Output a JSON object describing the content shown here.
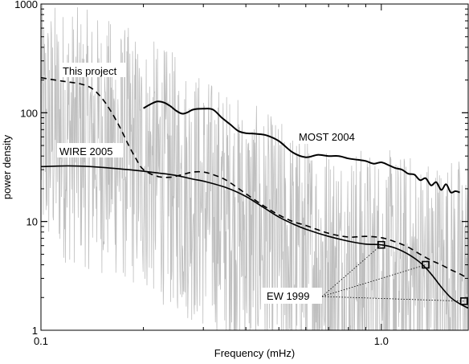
{
  "chart_data": {
    "type": "line",
    "xlabel": "Frequency (mHz)",
    "ylabel": "power density",
    "x_scale": "log",
    "y_scale": "log",
    "xlim": [
      0.1,
      1.8
    ],
    "ylim": [
      1,
      1000
    ],
    "x_ticks": [
      {
        "value": 0.1,
        "label": "0.1"
      },
      {
        "value": 1.0,
        "label": "1.0"
      }
    ],
    "y_ticks": [
      {
        "value": 1,
        "label": "1"
      },
      {
        "value": 10,
        "label": "10"
      },
      {
        "value": 100,
        "label": "100"
      },
      {
        "value": 1000,
        "label": "1000"
      }
    ],
    "grid": false,
    "noise_color": "#bfbfbf",
    "series": [
      {
        "name": "This project",
        "style": "dashed",
        "x": [
          0.1,
          0.11,
          0.12,
          0.13,
          0.14,
          0.15,
          0.16,
          0.17,
          0.18,
          0.19,
          0.2,
          0.22,
          0.24,
          0.26,
          0.28,
          0.3,
          0.32,
          0.35,
          0.4,
          0.45,
          0.5,
          0.55,
          0.6,
          0.7,
          0.8,
          0.9,
          1.0,
          1.1,
          1.2,
          1.3,
          1.4,
          1.5,
          1.6,
          1.7,
          1.8
        ],
        "y": [
          210,
          200,
          192,
          185,
          170,
          140,
          105,
          75,
          52,
          38,
          30,
          26,
          25.5,
          27,
          28.5,
          28.5,
          27,
          24,
          18,
          14,
          11.5,
          10,
          9.2,
          7.8,
          7.2,
          7.3,
          7.1,
          6.5,
          5.8,
          5.0,
          4.4,
          4.0,
          3.6,
          3.3,
          3.0
        ]
      },
      {
        "name": "WIRE 2005",
        "style": "solid",
        "x": [
          0.1,
          0.12,
          0.14,
          0.16,
          0.18,
          0.2,
          0.22,
          0.25,
          0.28,
          0.3,
          0.35,
          0.4,
          0.45,
          0.5,
          0.55,
          0.6,
          0.7,
          0.8,
          0.9,
          1.0,
          1.1,
          1.2,
          1.3,
          1.4,
          1.5,
          1.6,
          1.7,
          1.8
        ],
        "y": [
          32,
          32.5,
          32,
          31,
          30,
          29,
          28,
          26.5,
          24.5,
          23.5,
          20.5,
          17,
          13.5,
          11,
          9.5,
          8.5,
          7.3,
          6.6,
          6.2,
          6.1,
          5.7,
          5.0,
          4.2,
          3.3,
          2.5,
          2.0,
          1.75,
          1.6
        ]
      },
      {
        "name": "MOST 2004",
        "style": "solid-thick",
        "x": [
          0.2,
          0.21,
          0.22,
          0.23,
          0.24,
          0.25,
          0.26,
          0.27,
          0.28,
          0.3,
          0.32,
          0.34,
          0.36,
          0.38,
          0.4,
          0.43,
          0.46,
          0.5,
          0.55,
          0.6,
          0.65,
          0.7,
          0.75,
          0.8,
          0.85,
          0.9,
          0.95,
          1.0,
          1.05,
          1.1,
          1.15,
          1.2,
          1.25,
          1.3,
          1.35,
          1.4,
          1.45,
          1.5,
          1.55,
          1.6,
          1.65,
          1.7
        ],
        "y": [
          110,
          120,
          127,
          124,
          115,
          104,
          98,
          101,
          107,
          109,
          107,
          90,
          78,
          68,
          65,
          64,
          62,
          55,
          43,
          39,
          41,
          40,
          40,
          38,
          37,
          36,
          34,
          35,
          33,
          31,
          30,
          27.5,
          27,
          24,
          25,
          21.5,
          23,
          19.5,
          22,
          18.5,
          19,
          18.5
        ]
      }
    ],
    "markers": {
      "name": "EW 1999",
      "shape": "square",
      "points": [
        {
          "x": 1.0,
          "y": 6.1
        },
        {
          "x": 1.35,
          "y": 4.0
        },
        {
          "x": 1.75,
          "y": 1.85
        }
      ]
    },
    "annotations": [
      {
        "text": "This project",
        "series": "This project"
      },
      {
        "text": "WIRE 2005",
        "series": "WIRE 2005"
      },
      {
        "text": "MOST 2004",
        "series": "MOST 2004"
      },
      {
        "text": "EW 1999",
        "series": "EW 1999"
      }
    ]
  }
}
